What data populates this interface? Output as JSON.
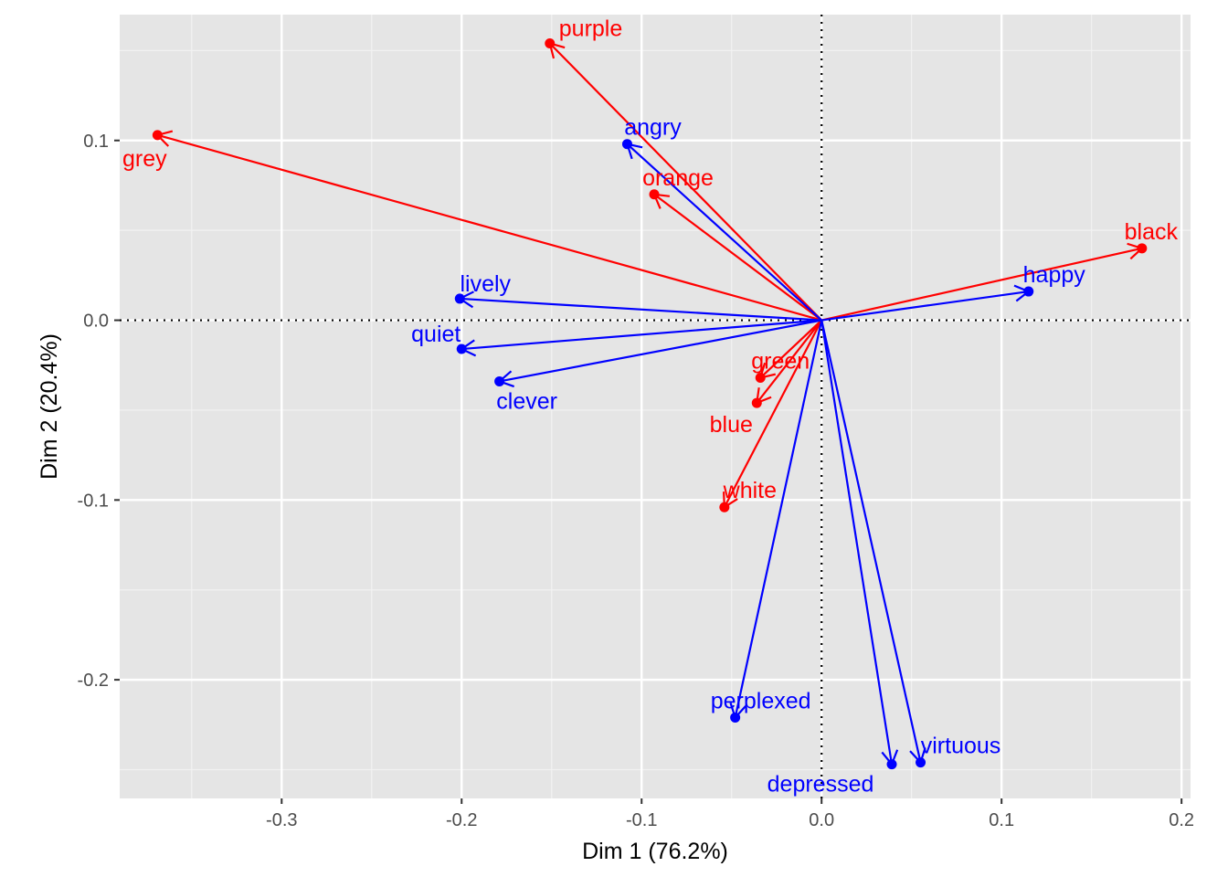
{
  "chart_data": {
    "type": "scatter",
    "subtype": "correspondence-analysis-biplot-with-arrows",
    "xlabel": "Dim 1 (76.2%)",
    "ylabel": "Dim 2 (20.4%)",
    "xlim": [
      -0.39,
      0.205
    ],
    "ylim": [
      -0.266,
      0.17
    ],
    "x_ticks": [
      -0.3,
      -0.2,
      -0.1,
      0.0,
      0.1,
      0.2
    ],
    "x_tick_labels": [
      "-0.3",
      "-0.2",
      "-0.1",
      "0.0",
      "0.1",
      "0.2"
    ],
    "y_ticks": [
      -0.2,
      -0.1,
      0.0,
      0.1
    ],
    "y_tick_labels": [
      "-0.2",
      "-0.1",
      "0.0",
      "0.1"
    ],
    "grid": true,
    "reference_lines": {
      "x": 0,
      "y": 0,
      "style": "dotted"
    },
    "arrows_from_origin": true,
    "series": [
      {
        "color": "#ff0000",
        "points": [
          {
            "label": "purple",
            "x": -0.151,
            "y": 0.154
          },
          {
            "label": "grey",
            "x": -0.369,
            "y": 0.103
          },
          {
            "label": "orange",
            "x": -0.093,
            "y": 0.07
          },
          {
            "label": "black",
            "x": 0.178,
            "y": 0.04
          },
          {
            "label": "green",
            "x": -0.034,
            "y": -0.032
          },
          {
            "label": "blue",
            "x": -0.036,
            "y": -0.046
          },
          {
            "label": "white",
            "x": -0.054,
            "y": -0.104
          }
        ]
      },
      {
        "color": "#0000ff",
        "points": [
          {
            "label": "angry",
            "x": -0.108,
            "y": 0.098
          },
          {
            "label": "lively",
            "x": -0.201,
            "y": 0.012
          },
          {
            "label": "quiet",
            "x": -0.2,
            "y": -0.016
          },
          {
            "label": "clever",
            "x": -0.179,
            "y": -0.034
          },
          {
            "label": "happy",
            "x": 0.115,
            "y": 0.016
          },
          {
            "label": "perplexed",
            "x": -0.048,
            "y": -0.221
          },
          {
            "label": "depressed",
            "x": 0.039,
            "y": -0.247
          },
          {
            "label": "virtuous",
            "x": 0.055,
            "y": -0.246
          }
        ]
      }
    ]
  },
  "colors": {
    "panel_background": "#e5e5e5",
    "grid_major": "#ffffff",
    "grid_minor": "#f2f2f2",
    "reference_line": "#000000"
  }
}
